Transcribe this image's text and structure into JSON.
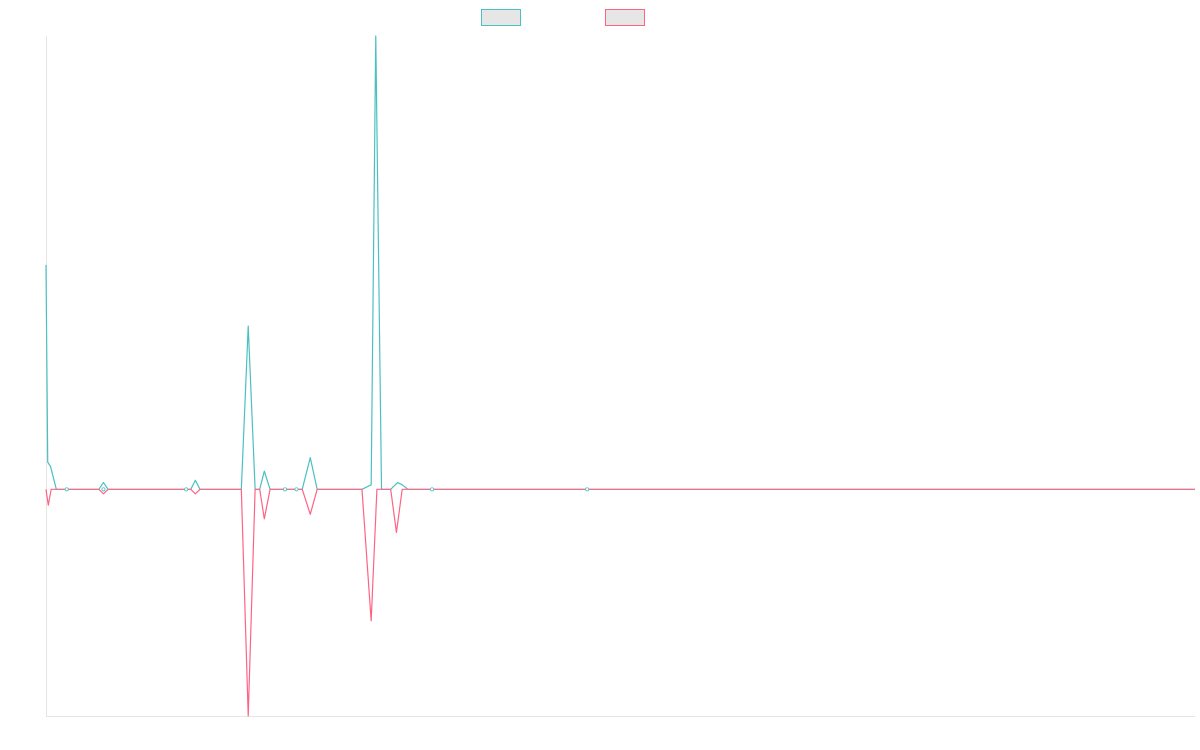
{
  "chart_data": {
    "type": "line",
    "series": [
      {
        "color": "#4bc0c0",
        "fill": "#e6e6e6",
        "values": [
          [
            0,
            0.99
          ],
          [
            0.15,
            0.12
          ],
          [
            0.4,
            0.1
          ],
          [
            0.9,
            0
          ],
          [
            2,
            0
          ],
          [
            3,
            0
          ],
          [
            4.6,
            0
          ],
          [
            5,
            0.03
          ],
          [
            5.4,
            0
          ],
          [
            6,
            0
          ],
          [
            12,
            0
          ],
          [
            12.6,
            0
          ],
          [
            13,
            0.04
          ],
          [
            13.4,
            0
          ],
          [
            14,
            0
          ],
          [
            17,
            0
          ],
          [
            17.6,
            0.72
          ],
          [
            18.2,
            0
          ],
          [
            18.6,
            0
          ],
          [
            19,
            0.08
          ],
          [
            19.5,
            0
          ],
          [
            20,
            0
          ],
          [
            21.5,
            0
          ],
          [
            22.3,
            0
          ],
          [
            23,
            0.14
          ],
          [
            23.6,
            0
          ],
          [
            27.5,
            0
          ],
          [
            28.3,
            0.02
          ],
          [
            28.7,
            2.0
          ],
          [
            29.2,
            0
          ],
          [
            30,
            0
          ],
          [
            30.6,
            0.03
          ],
          [
            31,
            0.02
          ],
          [
            31.5,
            0
          ],
          [
            33,
            0
          ],
          [
            35,
            0
          ],
          [
            36.5,
            0
          ],
          [
            41.5,
            0
          ],
          [
            47.3,
            0
          ],
          [
            100,
            0
          ]
        ]
      },
      {
        "color": "#ff6384",
        "fill": "#e6e6e6",
        "values": [
          [
            0,
            0
          ],
          [
            0.2,
            -0.07
          ],
          [
            0.45,
            0
          ],
          [
            0.9,
            0
          ],
          [
            2,
            0
          ],
          [
            3,
            0
          ],
          [
            4.6,
            0
          ],
          [
            5,
            -0.02
          ],
          [
            5.4,
            0
          ],
          [
            6,
            0
          ],
          [
            12,
            0
          ],
          [
            12.6,
            0
          ],
          [
            13,
            -0.02
          ],
          [
            13.4,
            0
          ],
          [
            14,
            0
          ],
          [
            17,
            0
          ],
          [
            17.6,
            -1.0
          ],
          [
            18.2,
            0
          ],
          [
            18.6,
            0
          ],
          [
            19,
            -0.13
          ],
          [
            19.5,
            0
          ],
          [
            20,
            0
          ],
          [
            21.5,
            0
          ],
          [
            22.3,
            0
          ],
          [
            23,
            -0.11
          ],
          [
            23.6,
            0
          ],
          [
            27.5,
            0
          ],
          [
            28.3,
            -0.58
          ],
          [
            28.8,
            0
          ],
          [
            29.3,
            0
          ],
          [
            30,
            0
          ],
          [
            30.5,
            -0.19
          ],
          [
            31,
            0
          ],
          [
            31.5,
            0
          ],
          [
            33,
            0
          ],
          [
            35,
            0
          ],
          [
            36.5,
            0
          ],
          [
            41.5,
            0
          ],
          [
            47.3,
            0
          ],
          [
            100,
            0
          ]
        ]
      }
    ],
    "xlim": [
      0,
      100
    ],
    "ylim": [
      -1,
      2
    ],
    "grid": false,
    "legend_position": "top-center"
  }
}
